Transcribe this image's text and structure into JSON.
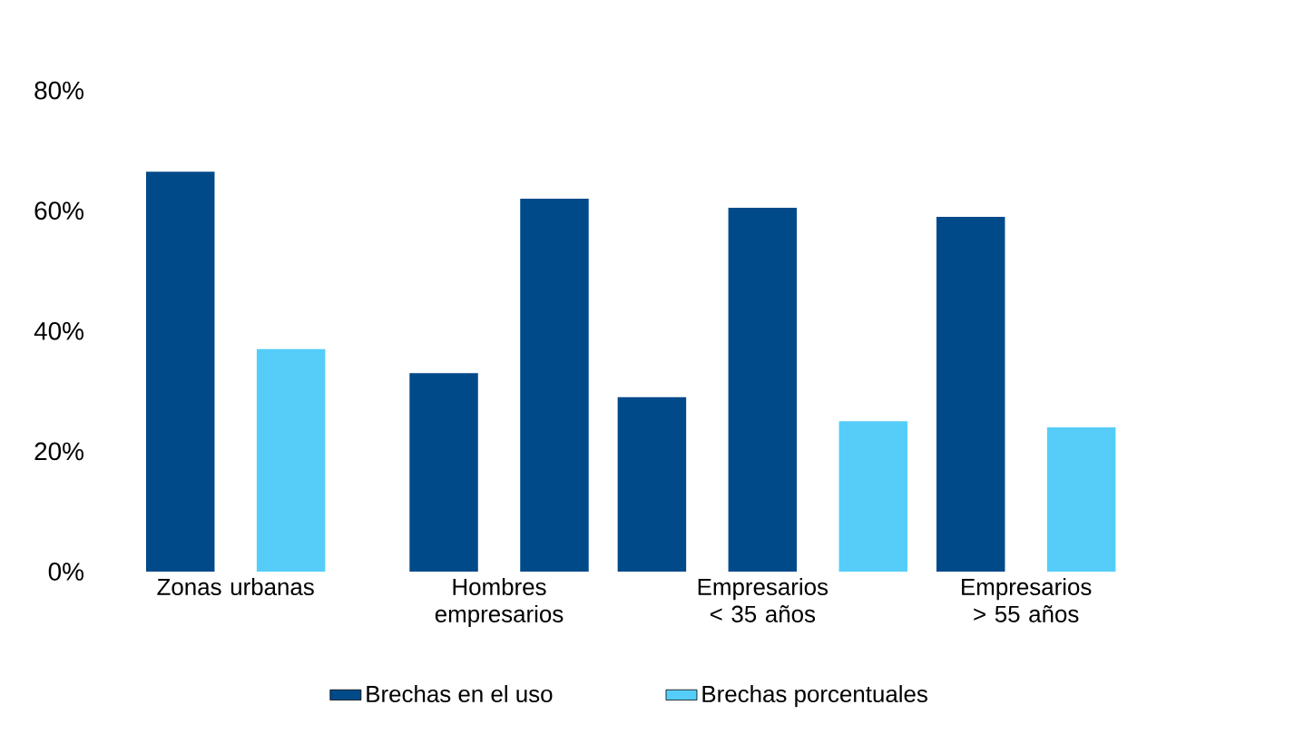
{
  "chart_data": {
    "type": "bar",
    "categories": [
      "Zonas urbanas",
      "Hombres empresarios",
      "Empresarios < 35 años",
      "Empresarios > 55 años"
    ],
    "series": [
      {
        "name": "Brechas en el uso",
        "color": "#004a8a",
        "values": [
          66.5,
          33,
          29,
          null
        ]
      },
      {
        "color": "#004a8a",
        "values": [
          null,
          62,
          60.5,
          59
        ]
      },
      {
        "name": "Brechas porcentuales",
        "color": "#55cdf8",
        "values": [
          37,
          null,
          25,
          24
        ]
      }
    ],
    "ylim": [
      0,
      80
    ],
    "yticks": [
      {
        "value": 0,
        "label": "0%"
      },
      {
        "value": 20,
        "label": "20%"
      },
      {
        "value": 40,
        "label": "40%"
      },
      {
        "value": 60,
        "label": "60%"
      },
      {
        "value": 80,
        "label": "80%"
      }
    ],
    "legend": "bottom"
  }
}
